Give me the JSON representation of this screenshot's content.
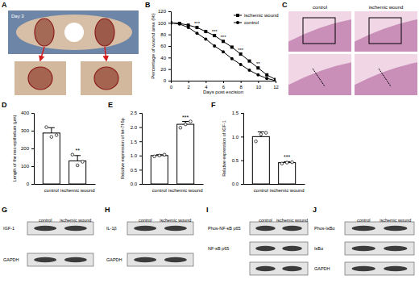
{
  "panel_labels": [
    "A",
    "B",
    "C",
    "D",
    "E",
    "F",
    "G",
    "H",
    "I",
    "J"
  ],
  "photos": {
    "day": "Day 3"
  },
  "histology": {
    "labels": [
      "control",
      "ischemic wound"
    ]
  },
  "blots": [
    {
      "lanes": [
        "control",
        "ischemic wound"
      ],
      "proteins": [
        "IGF-1",
        "GAPDH"
      ]
    },
    {
      "lanes": [
        "control",
        "ischemic wound"
      ],
      "proteins": [
        "IL-1β",
        "GAPDH"
      ]
    },
    {
      "lanes": [
        "control",
        "ischemic wound"
      ],
      "proteins": [
        "Phos-NF-κB p65",
        "NF-κB p65"
      ]
    },
    {
      "lanes": [
        "control",
        "ischemic wound"
      ],
      "proteins": [
        "Phos-IκBα",
        "IκBα",
        "GAPDH"
      ]
    }
  ],
  "chart_data": [
    {
      "type": "line",
      "xlabel": "Days post excision",
      "ylabel": "Percentage of wound area (%)",
      "x": [
        0,
        1,
        2,
        3,
        4,
        5,
        6,
        7,
        8,
        9,
        10,
        11,
        12
      ],
      "series": [
        {
          "name": "ischemic wound",
          "color": "#000000",
          "marker": "square",
          "values": [
            100,
            99,
            96,
            92,
            85,
            78,
            68,
            58,
            46,
            34,
            22,
            10,
            2
          ]
        },
        {
          "name": "control",
          "color": "#000000",
          "marker": "circle",
          "values": [
            100,
            98,
            92,
            82,
            72,
            60,
            50,
            38,
            28,
            18,
            10,
            4,
            0
          ]
        }
      ],
      "xlim": [
        0,
        12
      ],
      "xticks": [
        0,
        2,
        4,
        6,
        8,
        10,
        12
      ],
      "ylim": [
        0,
        120
      ],
      "yticks": [
        0,
        20,
        40,
        60,
        80,
        100,
        120
      ],
      "legend": "upper right",
      "annotations": [
        {
          "x": 3,
          "text": "***"
        },
        {
          "x": 5,
          "text": "***"
        },
        {
          "x": 6,
          "text": "***"
        },
        {
          "x": 8,
          "text": "***"
        },
        {
          "x": 10,
          "text": "**"
        }
      ]
    },
    {
      "type": "bar",
      "ylabel": "Length of the neo-epithelium (μm)",
      "categories": [
        "control",
        "ischemic wound"
      ],
      "values": [
        287,
        130
      ],
      "errors": [
        30,
        30
      ],
      "points": [
        [
          320,
          265,
          275
        ],
        [
          165,
          105,
          125
        ]
      ],
      "color": "#ffffff",
      "ylim": [
        0,
        400
      ],
      "yticks": [
        0,
        100,
        200,
        300,
        400
      ],
      "annotations": [
        {
          "category": "ischemic wound",
          "text": "**"
        }
      ]
    },
    {
      "type": "bar",
      "ylabel": "Relative expression of let-7f-5p",
      "categories": [
        "control",
        "ischemic wound"
      ],
      "values": [
        1.0,
        2.1
      ],
      "errors": [
        0.03,
        0.1
      ],
      "points": [
        [
          0.97,
          1.0,
          1.03
        ],
        [
          1.98,
          2.1,
          2.2
        ]
      ],
      "color": "#ffffff",
      "ylim": [
        0,
        2.5
      ],
      "yticks": [
        {
          "value": 0,
          "label": "0.0"
        },
        {
          "value": 0.5,
          "label": "0.5"
        },
        {
          "value": 1,
          "label": "1.0"
        },
        {
          "value": 1.5,
          "label": "1.5"
        },
        {
          "value": 2,
          "label": "2.0"
        },
        {
          "value": 2.5,
          "label": "2.5"
        }
      ],
      "annotations": [
        {
          "category": "ischemic wound",
          "text": "***"
        }
      ]
    },
    {
      "type": "bar",
      "ylabel": "Relative expression of IGF-1",
      "categories": [
        "control",
        "ischemic wound"
      ],
      "values": [
        1.0,
        0.45
      ],
      "errors": [
        0.1,
        0.02
      ],
      "points": [
        [
          0.9,
          1.05,
          1.08
        ],
        [
          0.43,
          0.45,
          0.46
        ]
      ],
      "color": "#ffffff",
      "ylim": [
        0,
        1.5
      ],
      "yticks": [
        {
          "value": 0,
          "label": "0.0"
        },
        {
          "value": 0.5,
          "label": "0.5"
        },
        {
          "value": 1,
          "label": "1.0"
        },
        {
          "value": 1.5,
          "label": "1.5"
        }
      ],
      "annotations": [
        {
          "category": "ischemic wound",
          "text": "***"
        }
      ]
    }
  ]
}
